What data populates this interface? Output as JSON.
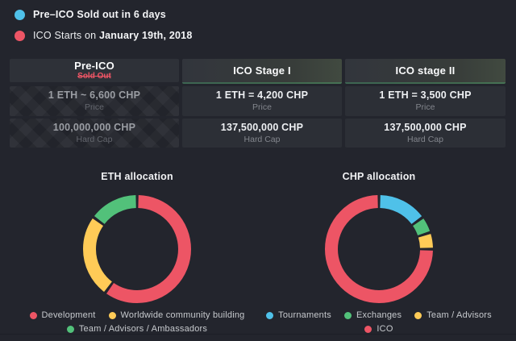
{
  "announcements": [
    {
      "dot_color": "#4fc1e9",
      "prefix": "",
      "bold": "Pre–ICO Sold out in 6 days"
    },
    {
      "dot_color": "#ed5565",
      "prefix": "ICO Starts on ",
      "bold": "January 19th, 2018"
    }
  ],
  "table": {
    "columns": [
      {
        "title": "Pre-ICO",
        "badge": "Sold Out",
        "price_value": "1 ETH ~ 6,600 CHP",
        "price_label": "Price",
        "hardcap_value": "100,000,000 CHP",
        "hardcap_label": "Hard Cap"
      },
      {
        "title": "ICO Stage I",
        "price_value": "1 ETH = 4,200 CHP",
        "price_label": "Price",
        "hardcap_value": "137,500,000 CHP",
        "hardcap_label": "Hard Cap"
      },
      {
        "title": "ICO stage II",
        "price_value": "1 ETH = 3,500 CHP",
        "price_label": "Price",
        "hardcap_value": "137,500,000 CHP",
        "hardcap_label": "Hard Cap"
      }
    ]
  },
  "chart_data": [
    {
      "type": "pie",
      "variant": "donut",
      "title": "ETH allocation",
      "legend_position": "bottom",
      "series": [
        {
          "name": "Development",
          "value": 60,
          "color": "#ed5565"
        },
        {
          "name": "Worldwide community building",
          "value": 25,
          "color": "#ffcb57"
        },
        {
          "name": "Team / Advisors / Ambassadors",
          "value": 15,
          "color": "#52c17a"
        }
      ]
    },
    {
      "type": "pie",
      "variant": "donut",
      "title": "CHP allocation",
      "legend_position": "bottom",
      "series": [
        {
          "name": "Tournaments",
          "value": 15,
          "color": "#4fc1e9"
        },
        {
          "name": "Exchanges",
          "value": 5,
          "color": "#52c17a"
        },
        {
          "name": "Team / Advisors",
          "value": 5,
          "color": "#ffcb57"
        },
        {
          "name": "ICO",
          "value": 75,
          "color": "#ed5565"
        }
      ]
    }
  ],
  "colors": {
    "background": "#23252d",
    "accent_red": "#ed5565",
    "accent_blue": "#4fc1e9",
    "accent_yellow": "#ffcb57",
    "accent_green": "#52c17a"
  }
}
